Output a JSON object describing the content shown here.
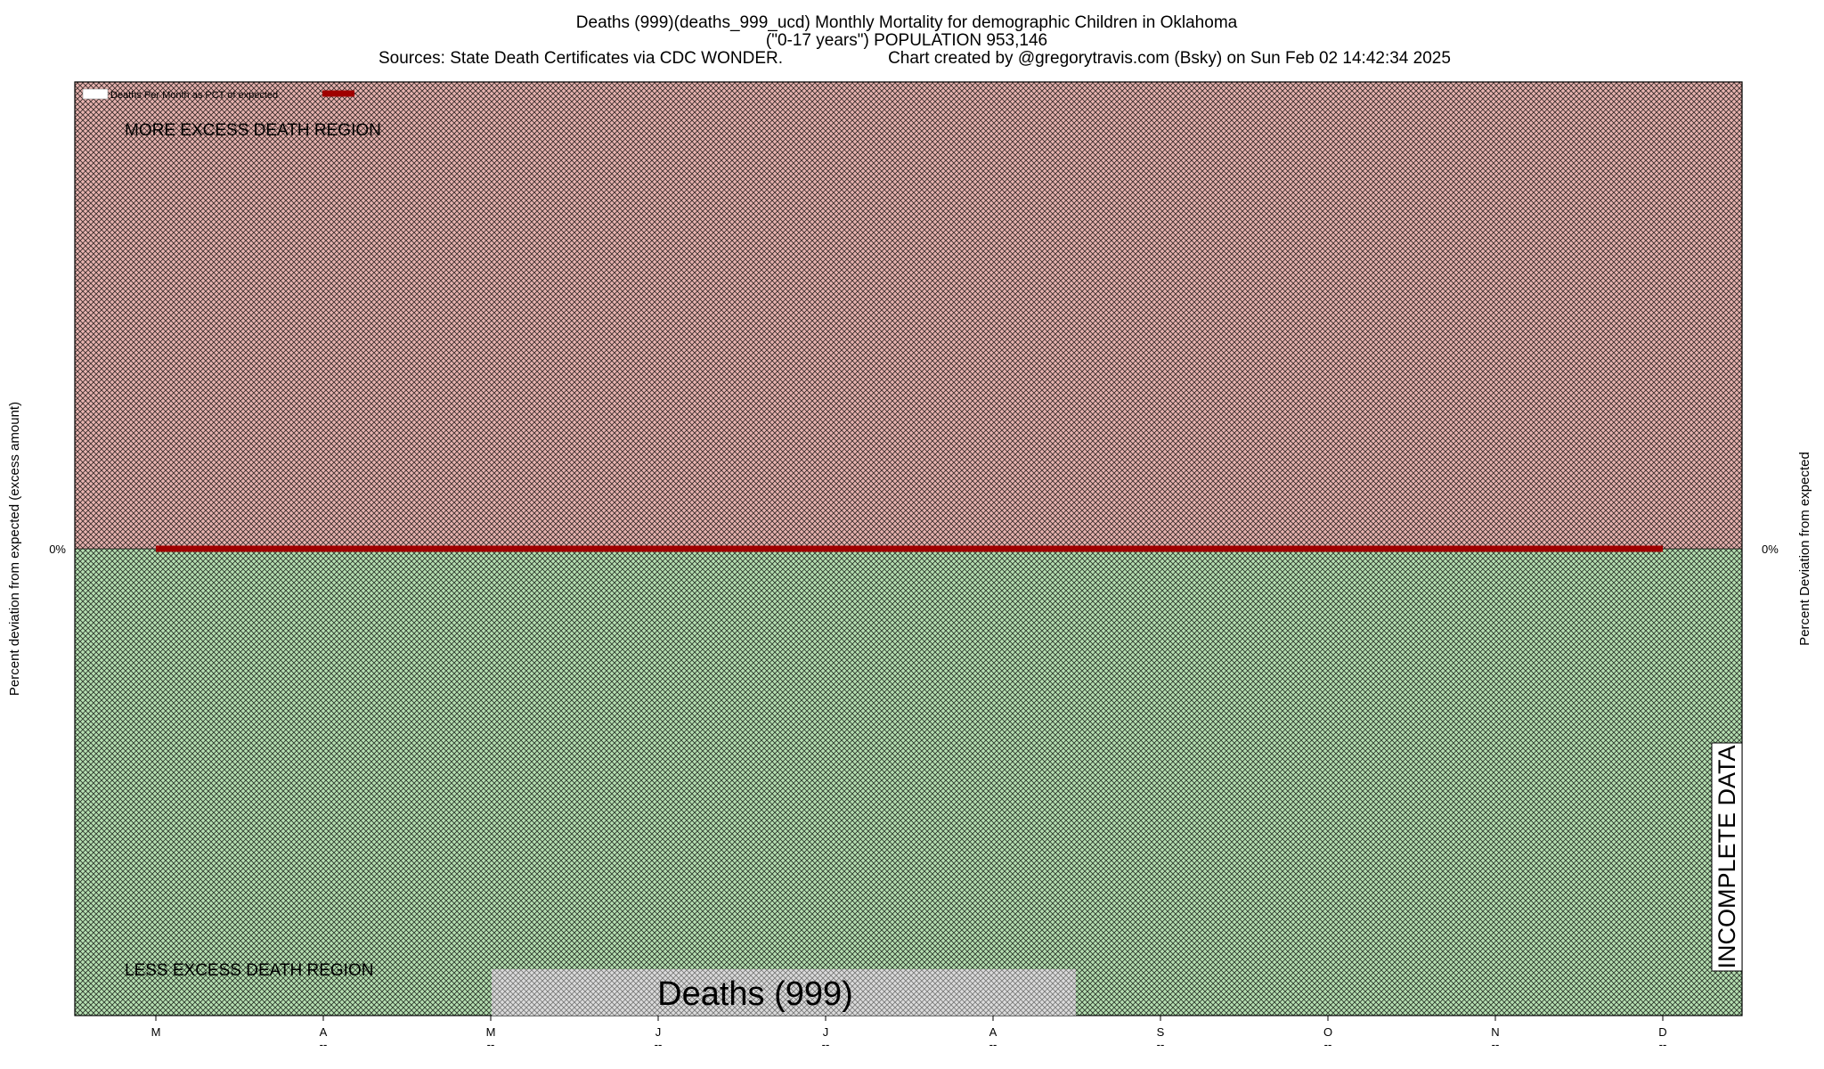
{
  "header": {
    "title_line1": "Deaths (999)(deaths_999_ucd) Monthly Mortality for demographic Children in Oklahoma",
    "title_line2": "(\"0-17 years\") POPULATION 953,146",
    "sources": "Sources: State Death Certificates via CDC WONDER.",
    "credit": "Chart created by @gregorytravis.com (Bsky) on Sun Feb 02 14:42:34 2025"
  },
  "labels": {
    "more_region": "MORE EXCESS DEATH REGION",
    "less_region": "LESS EXCESS DEATH REGION",
    "cause_box": "Deaths (999)",
    "incomplete": "INCOMPLETE DATA",
    "legend": "Deaths Per Month as PCT of expected"
  },
  "colors": {
    "excess_region": "#e8b4b0",
    "less_region": "#b6e0b2",
    "hatch": "#000000",
    "series_line": "#a00000"
  },
  "chart_data": {
    "type": "line",
    "ylabel_left": "Percent deviation from expected (excess amount)",
    "ylabel_right": "Percent Deviation from expected",
    "y_tick_left": "0%",
    "y_tick_right": "0%",
    "ylim": [
      -1,
      1
    ],
    "categories": [
      "M",
      "A",
      "M",
      "J",
      "J",
      "A",
      "S",
      "O",
      "N",
      "D"
    ],
    "tick_sublabels": [
      "",
      "--",
      "--",
      "--",
      "--",
      "--",
      "--",
      "--",
      "--",
      "--"
    ],
    "series": [
      {
        "name": "Deaths Per Month as PCT of expected",
        "values": [
          0,
          0,
          0,
          0,
          0,
          0,
          0,
          0,
          0,
          0
        ]
      }
    ],
    "legend_position": "top-left",
    "grid": false
  }
}
